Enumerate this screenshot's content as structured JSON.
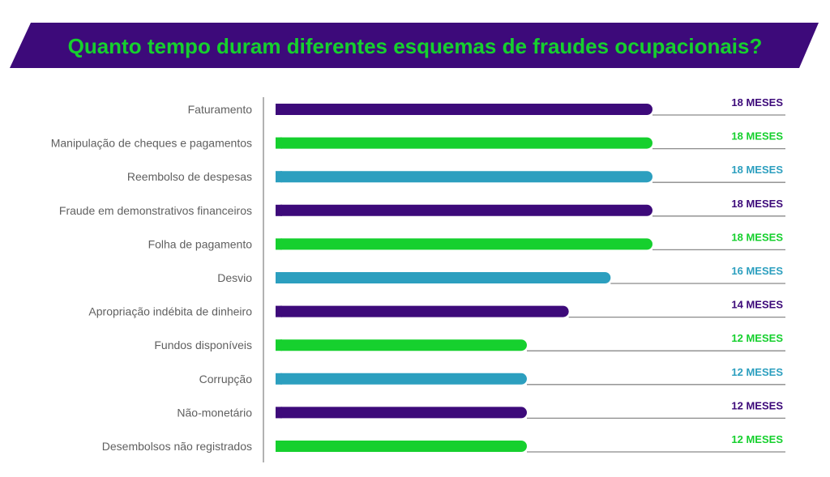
{
  "chart_data": {
    "type": "bar",
    "orientation": "horizontal",
    "title": "Quanto tempo duram diferentes esquemas de fraudes ocupacionais?",
    "categories": [
      "Faturamento",
      "Manipulação de cheques e pagamentos",
      "Reembolso de despesas",
      "Fraude em demonstrativos financeiros",
      "Folha de pagamento",
      "Desvio",
      "Apropriação indébita de dinheiro",
      "Fundos disponíveis",
      "Corrupção",
      "Não-monetário",
      "Desembolsos não registrados"
    ],
    "values": [
      18,
      18,
      18,
      18,
      18,
      16,
      14,
      12,
      12,
      12,
      12
    ],
    "value_labels": [
      "18 MESES",
      "18 MESES",
      "18 MESES",
      "18 MESES",
      "18 MESES",
      "16 MESES",
      "14 MESES",
      "12 MESES",
      "12 MESES",
      "12 MESES",
      "12 MESES"
    ],
    "bar_colors": [
      "#3d0a7a",
      "#16d02e",
      "#2c9fbf",
      "#3d0a7a",
      "#16d02e",
      "#2c9fbf",
      "#3d0a7a",
      "#16d02e",
      "#2c9fbf",
      "#3d0a7a",
      "#16d02e"
    ],
    "xlim": [
      0,
      18
    ],
    "grid": false,
    "legend": "none"
  },
  "colors": {
    "title_banner": "#3d0a7a",
    "title_text": "#16d02e",
    "axis_line": "#999999",
    "leader_line": "#8a8a8a",
    "category_text": "#606060"
  }
}
